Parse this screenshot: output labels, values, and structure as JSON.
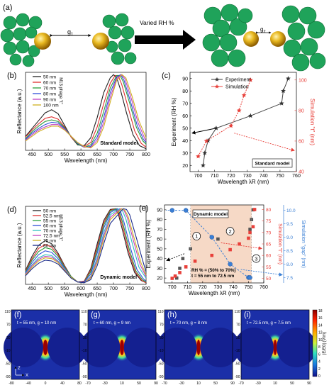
{
  "panel_a": {
    "label": "(a)",
    "gap_left": "g",
    "gap_left_sub": "1",
    "arrow_text": "Varied RH %",
    "gap_right": "g",
    "gap_right_sub": "2"
  },
  "colors": {
    "green": "#1fa35a",
    "gold": "#e0b020",
    "experiment": "#444444",
    "simulation": "#e8403a",
    "gap": "#3a7fd5",
    "shade": "#f6d9c6"
  },
  "chart_data": [
    {
      "id": "b",
      "type": "line",
      "label": "(b)",
      "xlabel": "Wavelength (nm)",
      "ylabel": "Reflectance (a.u.)",
      "xlim": [
        430,
        800
      ],
      "xticks": [
        450,
        500,
        550,
        600,
        650,
        700,
        750,
        800
      ],
      "series_title": "M13 phage \"t\"",
      "note": "Standard model",
      "series": [
        {
          "name": "50 nm",
          "color": "#222222",
          "x": [
            430,
            450,
            470,
            490,
            510,
            530,
            550,
            570,
            590,
            610,
            630,
            650,
            670,
            690,
            700,
            710,
            720,
            740,
            760,
            780,
            800
          ],
          "y": [
            0.18,
            0.28,
            0.38,
            0.48,
            0.52,
            0.47,
            0.32,
            0.17,
            0.07,
            0.06,
            0.16,
            0.42,
            0.74,
            0.93,
            0.97,
            0.93,
            0.8,
            0.48,
            0.2,
            0.06,
            0.02
          ]
        },
        {
          "name": "60 nm",
          "color": "#e03030",
          "x": [
            430,
            450,
            470,
            490,
            510,
            530,
            550,
            570,
            590,
            610,
            630,
            650,
            670,
            690,
            705,
            715,
            725,
            745,
            765,
            785,
            800
          ],
          "y": [
            0.17,
            0.26,
            0.34,
            0.41,
            0.43,
            0.4,
            0.3,
            0.17,
            0.08,
            0.05,
            0.1,
            0.3,
            0.6,
            0.86,
            0.96,
            0.95,
            0.85,
            0.55,
            0.25,
            0.09,
            0.04
          ]
        },
        {
          "name": "70 nm",
          "color": "#2a9e3a",
          "x": [
            430,
            450,
            470,
            490,
            510,
            530,
            550,
            570,
            590,
            610,
            630,
            650,
            670,
            690,
            710,
            720,
            730,
            750,
            770,
            790,
            800
          ],
          "y": [
            0.15,
            0.24,
            0.31,
            0.37,
            0.39,
            0.37,
            0.29,
            0.18,
            0.08,
            0.04,
            0.07,
            0.22,
            0.5,
            0.8,
            0.96,
            0.96,
            0.88,
            0.6,
            0.3,
            0.12,
            0.08
          ]
        },
        {
          "name": "80 nm",
          "color": "#2f4fd8",
          "x": [
            430,
            450,
            470,
            490,
            510,
            530,
            550,
            570,
            590,
            610,
            630,
            650,
            670,
            690,
            710,
            722,
            732,
            752,
            772,
            792,
            800
          ],
          "y": [
            0.14,
            0.22,
            0.28,
            0.33,
            0.36,
            0.35,
            0.28,
            0.18,
            0.09,
            0.04,
            0.05,
            0.17,
            0.42,
            0.74,
            0.94,
            0.97,
            0.9,
            0.63,
            0.33,
            0.14,
            0.1
          ]
        },
        {
          "name": "90 nm",
          "color": "#c040c0",
          "x": [
            430,
            450,
            470,
            490,
            510,
            530,
            550,
            570,
            590,
            610,
            630,
            650,
            670,
            690,
            710,
            724,
            735,
            755,
            775,
            795,
            800
          ],
          "y": [
            0.13,
            0.2,
            0.26,
            0.3,
            0.33,
            0.33,
            0.27,
            0.18,
            0.1,
            0.04,
            0.04,
            0.13,
            0.36,
            0.68,
            0.92,
            0.97,
            0.92,
            0.66,
            0.36,
            0.16,
            0.12
          ]
        },
        {
          "name": "100 nm",
          "color": "#d0b020",
          "x": [
            430,
            450,
            470,
            490,
            510,
            530,
            550,
            570,
            590,
            610,
            630,
            650,
            670,
            690,
            710,
            726,
            738,
            758,
            778,
            798,
            800
          ],
          "y": [
            0.12,
            0.18,
            0.24,
            0.28,
            0.31,
            0.31,
            0.26,
            0.18,
            0.1,
            0.05,
            0.03,
            0.1,
            0.3,
            0.62,
            0.9,
            0.97,
            0.93,
            0.68,
            0.38,
            0.18,
            0.16
          ]
        }
      ]
    },
    {
      "id": "c",
      "type": "line",
      "label": "(c)",
      "xlabel": "Wavelength λR (nm)",
      "ylabel": "Experiment (RH %)",
      "y2label": "Simulation \"t\" (nm)",
      "xlim": [
        695,
        760
      ],
      "xticks": [
        700,
        710,
        720,
        730,
        740,
        750,
        760
      ],
      "ylim": [
        15,
        95
      ],
      "yticks": [
        20,
        30,
        40,
        50,
        60,
        70,
        80,
        90
      ],
      "y2lim": [
        40,
        105
      ],
      "y2ticks": [
        40,
        60,
        80,
        100
      ],
      "note": "Standard model",
      "series": [
        {
          "name": "Experiment",
          "axis": "left",
          "marker": "star",
          "x": [
            703,
            704,
            706,
            711,
            732,
            751,
            752,
            755
          ],
          "y": [
            20,
            30,
            40,
            50,
            60,
            70,
            80,
            90
          ]
        },
        {
          "name": "Simulation",
          "axis": "right",
          "marker": "star",
          "x": [
            700,
            705,
            720,
            725,
            728,
            732
          ],
          "y": [
            50,
            60,
            70,
            80,
            90,
            100
          ]
        }
      ]
    },
    {
      "id": "d",
      "type": "line",
      "label": "(d)",
      "xlabel": "Wavelength (nm)",
      "ylabel": "Reflectance (a.u.)",
      "xlim": [
        430,
        800
      ],
      "xticks": [
        450,
        500,
        550,
        600,
        650,
        700,
        750,
        800
      ],
      "series_title": "M13 phage \"t\"",
      "note": "Dynamic model",
      "series": [
        {
          "name": "50 nm",
          "color": "#222222",
          "x": [
            430,
            450,
            470,
            490,
            510,
            530,
            550,
            570,
            590,
            610,
            630,
            650,
            670,
            690,
            705,
            715,
            725,
            745,
            765,
            785,
            800
          ],
          "y": [
            0.18,
            0.36,
            0.5,
            0.56,
            0.52,
            0.4,
            0.24,
            0.1,
            0.03,
            0.04,
            0.2,
            0.52,
            0.82,
            0.96,
            0.97,
            0.9,
            0.74,
            0.4,
            0.15,
            0.05,
            0.02
          ]
        },
        {
          "name": "52.5 nm",
          "color": "#e03030",
          "x": [
            430,
            450,
            470,
            490,
            510,
            530,
            550,
            570,
            590,
            610,
            630,
            650,
            670,
            690,
            707,
            717,
            727,
            747,
            767,
            787,
            800
          ],
          "y": [
            0.17,
            0.33,
            0.46,
            0.51,
            0.48,
            0.38,
            0.23,
            0.1,
            0.03,
            0.04,
            0.18,
            0.48,
            0.79,
            0.95,
            0.97,
            0.91,
            0.76,
            0.42,
            0.16,
            0.05,
            0.02
          ]
        },
        {
          "name": "55 nm",
          "color": "#2a9e3a",
          "x": [
            430,
            450,
            470,
            490,
            510,
            530,
            550,
            570,
            590,
            610,
            630,
            650,
            670,
            690,
            709,
            719,
            729,
            749,
            769,
            789,
            800
          ],
          "y": [
            0.16,
            0.31,
            0.42,
            0.47,
            0.45,
            0.36,
            0.22,
            0.1,
            0.03,
            0.03,
            0.16,
            0.44,
            0.76,
            0.94,
            0.97,
            0.92,
            0.78,
            0.44,
            0.17,
            0.06,
            0.03
          ]
        },
        {
          "name": "60 nm",
          "color": "#2f4fd8",
          "x": [
            430,
            450,
            470,
            490,
            510,
            530,
            550,
            570,
            590,
            610,
            630,
            650,
            670,
            690,
            712,
            722,
            732,
            752,
            772,
            792,
            800
          ],
          "y": [
            0.15,
            0.28,
            0.38,
            0.43,
            0.41,
            0.33,
            0.21,
            0.09,
            0.03,
            0.03,
            0.13,
            0.4,
            0.72,
            0.92,
            0.97,
            0.93,
            0.8,
            0.47,
            0.19,
            0.07,
            0.04
          ]
        },
        {
          "name": "70 nm",
          "color": "#30c0c0",
          "x": [
            430,
            450,
            470,
            490,
            510,
            530,
            550,
            570,
            590,
            610,
            630,
            650,
            670,
            690,
            718,
            728,
            738,
            758,
            778,
            798,
            800
          ],
          "y": [
            0.14,
            0.25,
            0.34,
            0.38,
            0.37,
            0.3,
            0.2,
            0.09,
            0.03,
            0.02,
            0.1,
            0.34,
            0.66,
            0.89,
            0.97,
            0.94,
            0.84,
            0.52,
            0.22,
            0.09,
            0.08
          ]
        },
        {
          "name": "72.5 nm",
          "color": "#c040c0",
          "x": [
            430,
            450,
            470,
            490,
            510,
            530,
            550,
            570,
            590,
            610,
            630,
            650,
            670,
            690,
            722,
            732,
            742,
            762,
            782,
            800
          ],
          "y": [
            0.13,
            0.24,
            0.32,
            0.36,
            0.35,
            0.29,
            0.19,
            0.09,
            0.03,
            0.02,
            0.09,
            0.31,
            0.62,
            0.86,
            0.97,
            0.95,
            0.86,
            0.55,
            0.25,
            0.1
          ]
        },
        {
          "name": "75 nm",
          "color": "#d0b020",
          "x": [
            430,
            450,
            470,
            490,
            510,
            530,
            550,
            570,
            590,
            610,
            630,
            650,
            670,
            690,
            725,
            735,
            745,
            765,
            785,
            800
          ],
          "y": [
            0.12,
            0.22,
            0.3,
            0.34,
            0.33,
            0.28,
            0.18,
            0.09,
            0.03,
            0.02,
            0.08,
            0.28,
            0.58,
            0.83,
            0.97,
            0.95,
            0.87,
            0.57,
            0.27,
            0.12
          ]
        },
        {
          "name": "80 nm",
          "color": "#1a2a8a",
          "x": [
            430,
            450,
            470,
            490,
            510,
            530,
            550,
            570,
            590,
            610,
            630,
            650,
            670,
            690,
            730,
            740,
            750,
            770,
            790,
            800
          ],
          "y": [
            0.11,
            0.2,
            0.27,
            0.31,
            0.3,
            0.26,
            0.17,
            0.08,
            0.03,
            0.02,
            0.06,
            0.24,
            0.52,
            0.78,
            0.97,
            0.96,
            0.89,
            0.6,
            0.3,
            0.16
          ]
        }
      ]
    },
    {
      "id": "e",
      "type": "line",
      "label": "(e)",
      "xlabel": "Wavelength λR (nm)",
      "ylabel": "Experiment (RH %)",
      "y2label": "Simulation \"t\" (nm)",
      "y3label": "Simulation \"gap\" (nm)",
      "xlim": [
        695,
        760
      ],
      "xticks": [
        700,
        710,
        720,
        730,
        740,
        750,
        760
      ],
      "ylim": [
        15,
        95
      ],
      "yticks": [
        20,
        30,
        40,
        50,
        60,
        70,
        80,
        90
      ],
      "y2lim": [
        48,
        82
      ],
      "y2ticks": [
        50,
        55,
        60,
        65,
        70,
        75,
        80
      ],
      "y3lim": [
        7.3,
        10.2
      ],
      "y3ticks": [
        7.5,
        8.0,
        8.5,
        9.0,
        9.5,
        10.0
      ],
      "shade_x": [
        712,
        752
      ],
      "note": "Dynamic model",
      "regions": [
        "1",
        "2",
        "3"
      ],
      "annotation_lines": [
        "RH % = (50% to  70%)",
        "t = 55 nm to 72.5 nm"
      ],
      "series": [
        {
          "name": "Experiment",
          "axis": "left",
          "color": "#555555",
          "x": [
            703,
            705,
            707,
            712,
            730,
            751,
            752,
            753
          ],
          "y": [
            20,
            30,
            40,
            50,
            60,
            70,
            80,
            90
          ]
        },
        {
          "name": "Simulation t",
          "axis": "right",
          "color": "#e8403a",
          "x": [
            700,
            702,
            705,
            709,
            715,
            726,
            738,
            744,
            750,
            751,
            753,
            754
          ],
          "y": [
            50,
            51,
            52.5,
            55,
            57.5,
            60,
            62.5,
            65,
            67.5,
            70,
            72.5,
            80
          ]
        },
        {
          "name": "Simulation gap",
          "axis": "right2",
          "color": "#3a7fd5",
          "x": [
            700,
            709,
            726,
            738,
            750,
            751
          ],
          "y": [
            10,
            10,
            9.0,
            8.0,
            7.5,
            7.5
          ]
        }
      ]
    }
  ],
  "field_maps": {
    "colorbar_label": "|E/E0| (V/m)",
    "colorbar_ticks": [
      "18",
      "16",
      "14",
      "12",
      "10",
      "8",
      "6",
      "4",
      "2",
      "0"
    ],
    "axes_label_z": "Z",
    "axes_label_x": "X",
    "panels": [
      {
        "label": "(f)",
        "caption": "t = 55 nm, g = 10 nm",
        "xticks": [
          "-80",
          "-40",
          "0",
          "40",
          "80"
        ],
        "yticks": [
          "110",
          "70",
          "30",
          "-10",
          "-50",
          "-90"
        ]
      },
      {
        "label": "(g)",
        "caption": "t = 60 nm, g = 9 nm",
        "xticks": [
          "-70",
          "-30",
          "10",
          "50",
          "90"
        ],
        "yticks": [
          "110",
          "70",
          "30",
          "-10",
          "-50",
          "-90"
        ]
      },
      {
        "label": "(h)",
        "caption": "t = 70 nm, g = 8 nm",
        "xticks": [
          "-70",
          "-30",
          "10",
          "50",
          "90"
        ],
        "yticks": [
          "110",
          "70",
          "30",
          "-10",
          "-50",
          "-90"
        ]
      },
      {
        "label": "(i)",
        "caption": "t = 72.5 nm, g = 7.5 nm",
        "xticks": [
          "-70",
          "-30",
          "10",
          "50",
          "90"
        ],
        "yticks": [
          "110",
          "70",
          "30",
          "-10",
          "-50",
          "-90"
        ]
      }
    ]
  }
}
